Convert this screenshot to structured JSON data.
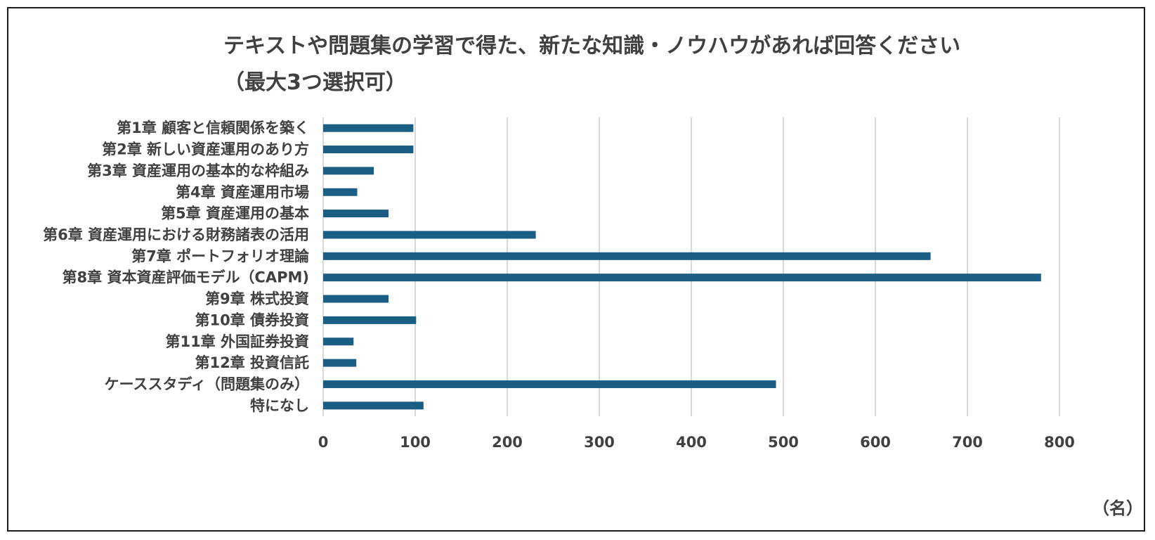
{
  "chart_data": {
    "type": "bar",
    "orientation": "horizontal",
    "title": "テキストや問題集の学習で得た、新たな知識・ノウハウがあれば回答ください",
    "subtitle": "（最大3つ選択可）",
    "unit_label": "（名）",
    "categories": [
      "第1章 顧客と信頼関係を築く",
      "第2章 新しい資産運用のあり方",
      "第3章 資産運用の基本的な枠組み",
      "第4章 資産運用市場",
      "第5章 資産運用の基本",
      "第6章 資産運用における財務諸表の活用",
      "第7章 ポートフォリオ理論",
      "第8章 資本資産評価モデル（CAPM)",
      "第9章 株式投資",
      "第10章 債券投資",
      "第11章 外国証券投資",
      "第12章 投資信託",
      "ケーススタディ（問題集のみ）",
      "特になし"
    ],
    "values": [
      98,
      98,
      55,
      37,
      71,
      231,
      660,
      780,
      71,
      101,
      33,
      36,
      492,
      109
    ],
    "xlim": [
      0,
      800
    ],
    "xticks": [
      0,
      100,
      200,
      300,
      400,
      500,
      600,
      700,
      800
    ],
    "grid": true,
    "bar_color": "#1b5e83",
    "grid_color": "#d9d9d9"
  }
}
